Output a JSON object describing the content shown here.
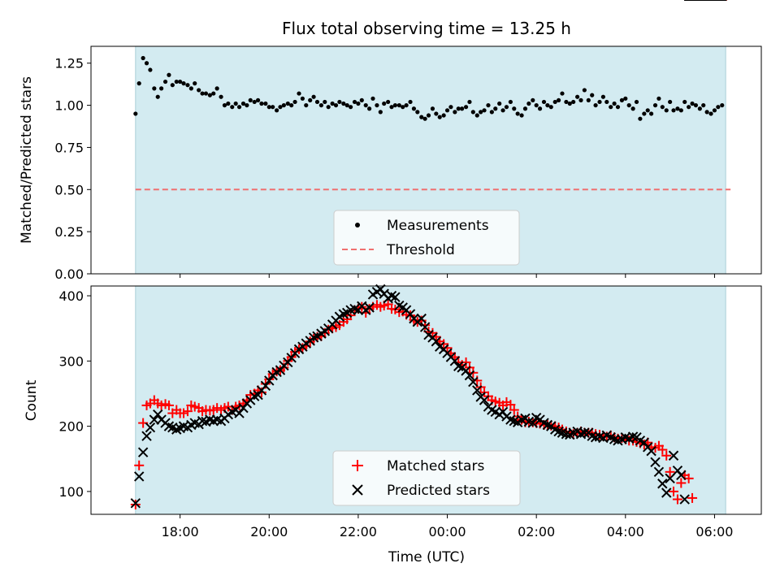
{
  "chart_data": [
    {
      "type": "scatter",
      "title": "Flux total observing time = 13.25 h",
      "ylabel": "Matched/Predicted stars",
      "xlabel": "",
      "ylim": [
        0,
        1.35
      ],
      "xlim_hours_since_1700_utc": [
        -1.0,
        14.05
      ],
      "observing_window_hours_since_1700_utc": [
        0.0,
        13.25
      ],
      "yticks": [
        0.0,
        0.25,
        0.5,
        0.75,
        1.0,
        1.25
      ],
      "ytick_labels": [
        "0.00",
        "0.25",
        "0.50",
        "0.75",
        "1.00",
        "1.25"
      ],
      "shaded_band_color": "#d3ebf1",
      "threshold": 0.5,
      "threshold_color": "#f07070",
      "series": [
        {
          "name": "Measurements",
          "x_hours_since_1700_utc": [
            0.0,
            0.08,
            0.17,
            0.25,
            0.33,
            0.42,
            0.5,
            0.58,
            0.67,
            0.75,
            0.83,
            0.92,
            1.0,
            1.08,
            1.17,
            1.25,
            1.33,
            1.42,
            1.5,
            1.58,
            1.67,
            1.75,
            1.83,
            1.92,
            2.0,
            2.08,
            2.17,
            2.25,
            2.33,
            2.42,
            2.5,
            2.58,
            2.67,
            2.75,
            2.83,
            2.92,
            3.0,
            3.08,
            3.17,
            3.25,
            3.33,
            3.42,
            3.5,
            3.58,
            3.67,
            3.75,
            3.83,
            3.92,
            4.0,
            4.08,
            4.17,
            4.25,
            4.33,
            4.42,
            4.5,
            4.58,
            4.67,
            4.75,
            4.83,
            4.92,
            5.0,
            5.08,
            5.17,
            5.25,
            5.33,
            5.42,
            5.5,
            5.58,
            5.67,
            5.75,
            5.83,
            5.92,
            6.0,
            6.08,
            6.17,
            6.25,
            6.33,
            6.42,
            6.5,
            6.58,
            6.67,
            6.75,
            6.83,
            6.92,
            7.0,
            7.08,
            7.17,
            7.25,
            7.33,
            7.42,
            7.5,
            7.58,
            7.67,
            7.75,
            7.83,
            7.92,
            8.0,
            8.08,
            8.17,
            8.25,
            8.33,
            8.42,
            8.5,
            8.58,
            8.67,
            8.75,
            8.83,
            8.92,
            9.0,
            9.08,
            9.17,
            9.25,
            9.33,
            9.42,
            9.5,
            9.58,
            9.67,
            9.75,
            9.83,
            9.92,
            10.0,
            10.08,
            10.17,
            10.25,
            10.33,
            10.42,
            10.5,
            10.58,
            10.67,
            10.75,
            10.83,
            10.92,
            11.0,
            11.08,
            11.17,
            11.25,
            11.33,
            11.42,
            11.5,
            11.58,
            11.67,
            11.75,
            11.83,
            11.92,
            12.0,
            12.08,
            12.17,
            12.25,
            12.33,
            12.42,
            12.5,
            12.58,
            12.67,
            12.75,
            12.83,
            12.92,
            13.0,
            13.08,
            13.17
          ],
          "y": [
            0.95,
            1.13,
            1.28,
            1.25,
            1.21,
            1.1,
            1.05,
            1.1,
            1.14,
            1.18,
            1.12,
            1.14,
            1.14,
            1.13,
            1.12,
            1.1,
            1.13,
            1.09,
            1.07,
            1.07,
            1.06,
            1.07,
            1.1,
            1.05,
            1.0,
            1.01,
            0.99,
            1.01,
            0.99,
            1.01,
            1.0,
            1.03,
            1.02,
            1.03,
            1.01,
            1.01,
            0.99,
            0.99,
            0.97,
            0.99,
            1.0,
            1.01,
            1.0,
            1.02,
            1.07,
            1.04,
            1.0,
            1.03,
            1.05,
            1.02,
            1.0,
            1.02,
            0.99,
            1.01,
            1.0,
            1.02,
            1.01,
            1.0,
            0.99,
            1.02,
            1.01,
            1.03,
            1.0,
            0.98,
            1.04,
            1.0,
            0.96,
            1.01,
            1.02,
            0.99,
            1.0,
            1.0,
            0.99,
            1.0,
            1.02,
            0.98,
            0.96,
            0.93,
            0.92,
            0.94,
            0.98,
            0.95,
            0.93,
            0.94,
            0.97,
            0.99,
            0.96,
            0.98,
            0.98,
            0.99,
            1.02,
            0.96,
            0.94,
            0.96,
            0.97,
            1.0,
            0.96,
            0.98,
            1.01,
            0.97,
            0.99,
            1.02,
            0.98,
            0.95,
            0.94,
            0.98,
            1.01,
            1.03,
            1.0,
            0.98,
            1.02,
            1.0,
            0.99,
            1.02,
            1.03,
            1.07,
            1.02,
            1.01,
            1.02,
            1.05,
            1.03,
            1.09,
            1.03,
            1.06,
            1.0,
            1.02,
            1.05,
            1.02,
            0.99,
            1.01,
            0.99,
            1.03,
            1.04,
            1.0,
            0.98,
            1.02,
            0.92,
            0.95,
            0.97,
            0.95,
            1.0,
            1.04,
            0.99,
            0.97,
            1.02,
            0.97,
            0.98,
            0.97,
            1.02,
            0.99,
            1.01,
            1.0,
            0.98,
            1.0,
            0.96,
            0.95,
            0.97,
            0.99,
            1.0,
            0.93,
            1.0,
            0.97,
            0.98,
            0.99
          ]
        }
      ],
      "legend": {
        "placement": "lower-center",
        "entries": [
          "Measurements",
          "Threshold"
        ]
      }
    },
    {
      "type": "scatter",
      "title": "",
      "ylabel": "Count",
      "xlabel": "Time (UTC)",
      "ylim": [
        65,
        415
      ],
      "yticks": [
        100,
        200,
        300,
        400
      ],
      "ytick_labels": [
        "100",
        "200",
        "300",
        "400"
      ],
      "xticks_hours_since_1700_utc": [
        1,
        3,
        5,
        7,
        9,
        11,
        13
      ],
      "xtick_labels": [
        "18:00",
        "20:00",
        "22:00",
        "00:00",
        "02:00",
        "04:00",
        "06:00"
      ],
      "shaded_band_color": "#d3ebf1",
      "series": [
        {
          "name": "Matched stars",
          "color": "#ff0000",
          "marker": "+",
          "x_hours_since_1700_utc": [
            0.0,
            0.08,
            0.17,
            0.25,
            0.33,
            0.42,
            0.5,
            0.58,
            0.67,
            0.75,
            0.83,
            0.92,
            1.0,
            1.08,
            1.17,
            1.25,
            1.33,
            1.42,
            1.5,
            1.58,
            1.67,
            1.75,
            1.83,
            1.92,
            2.0,
            2.08,
            2.17,
            2.25,
            2.33,
            2.42,
            2.5,
            2.58,
            2.67,
            2.75,
            2.83,
            2.92,
            3.0,
            3.08,
            3.17,
            3.25,
            3.33,
            3.42,
            3.5,
            3.58,
            3.67,
            3.75,
            3.83,
            3.92,
            4.0,
            4.08,
            4.17,
            4.25,
            4.33,
            4.42,
            4.5,
            4.58,
            4.67,
            4.75,
            4.83,
            4.92,
            5.0,
            5.08,
            5.17,
            5.25,
            5.33,
            5.42,
            5.5,
            5.58,
            5.67,
            5.75,
            5.83,
            5.92,
            6.0,
            6.08,
            6.17,
            6.25,
            6.33,
            6.42,
            6.5,
            6.58,
            6.67,
            6.75,
            6.83,
            6.92,
            7.0,
            7.08,
            7.17,
            7.25,
            7.33,
            7.42,
            7.5,
            7.58,
            7.67,
            7.75,
            7.83,
            7.92,
            8.0,
            8.08,
            8.17,
            8.25,
            8.33,
            8.42,
            8.5,
            8.58,
            8.67,
            8.75,
            8.83,
            8.92,
            9.0,
            9.08,
            9.17,
            9.25,
            9.33,
            9.42,
            9.5,
            9.58,
            9.67,
            9.75,
            9.83,
            9.92,
            10.0,
            10.08,
            10.17,
            10.25,
            10.33,
            10.42,
            10.5,
            10.58,
            10.67,
            10.75,
            10.83,
            10.92,
            11.0,
            11.08,
            11.17,
            11.25,
            11.33,
            11.42,
            11.5,
            11.58,
            11.67,
            11.75,
            11.83,
            11.92,
            12.0,
            12.08,
            12.17,
            12.25,
            12.33,
            12.42,
            12.5,
            12.58,
            12.67,
            12.75,
            12.83,
            12.92,
            13.0,
            13.08,
            13.17
          ],
          "values": [
            80,
            140,
            205,
            232,
            235,
            240,
            235,
            232,
            234,
            232,
            220,
            225,
            220,
            220,
            223,
            232,
            230,
            228,
            223,
            225,
            224,
            225,
            228,
            225,
            228,
            230,
            225,
            230,
            232,
            235,
            240,
            248,
            250,
            255,
            252,
            265,
            272,
            280,
            284,
            286,
            290,
            300,
            306,
            314,
            318,
            320,
            323,
            330,
            334,
            337,
            338,
            343,
            348,
            350,
            352,
            355,
            360,
            364,
            370,
            378,
            380,
            383,
            374,
            380,
            383,
            386,
            383,
            385,
            387,
            380,
            379,
            375,
            376,
            371,
            370,
            363,
            360,
            362,
            355,
            345,
            343,
            337,
            330,
            326,
            320,
            312,
            306,
            298,
            294,
            298,
            290,
            282,
            270,
            260,
            252,
            246,
            240,
            238,
            236,
            232,
            237,
            233,
            225,
            215,
            210,
            206,
            207,
            206,
            205,
            204,
            202,
            202,
            201,
            200,
            198,
            195,
            192,
            190,
            188,
            190,
            192,
            190,
            190,
            190,
            188,
            187,
            185,
            184,
            186,
            183,
            181,
            182,
            180,
            178,
            178,
            176,
            174,
            172,
            175,
            168,
            167,
            170,
            164,
            155,
            130,
            100,
            88,
            113,
            125,
            120,
            90
          ]
        },
        {
          "name": "Predicted stars",
          "color": "#000000",
          "marker": "x",
          "x_hours_since_1700_utc": [
            0.0,
            0.08,
            0.17,
            0.25,
            0.33,
            0.42,
            0.5,
            0.58,
            0.67,
            0.75,
            0.83,
            0.92,
            1.0,
            1.08,
            1.17,
            1.25,
            1.33,
            1.42,
            1.5,
            1.58,
            1.67,
            1.75,
            1.83,
            1.92,
            2.0,
            2.08,
            2.17,
            2.25,
            2.33,
            2.42,
            2.5,
            2.58,
            2.67,
            2.75,
            2.83,
            2.92,
            3.0,
            3.08,
            3.17,
            3.25,
            3.33,
            3.42,
            3.5,
            3.58,
            3.67,
            3.75,
            3.83,
            3.92,
            4.0,
            4.08,
            4.17,
            4.25,
            4.33,
            4.42,
            4.5,
            4.58,
            4.67,
            4.75,
            4.83,
            4.92,
            5.0,
            5.08,
            5.17,
            5.25,
            5.33,
            5.42,
            5.5,
            5.58,
            5.67,
            5.75,
            5.83,
            5.92,
            6.0,
            6.08,
            6.17,
            6.25,
            6.33,
            6.42,
            6.5,
            6.58,
            6.67,
            6.75,
            6.83,
            6.92,
            7.0,
            7.08,
            7.17,
            7.25,
            7.33,
            7.42,
            7.5,
            7.58,
            7.67,
            7.75,
            7.83,
            7.92,
            8.0,
            8.08,
            8.17,
            8.25,
            8.33,
            8.42,
            8.5,
            8.58,
            8.67,
            8.75,
            8.83,
            8.92,
            9.0,
            9.08,
            9.17,
            9.25,
            9.33,
            9.42,
            9.5,
            9.58,
            9.67,
            9.75,
            9.83,
            9.92,
            10.0,
            10.08,
            10.17,
            10.25,
            10.33,
            10.42,
            10.5,
            10.58,
            10.67,
            10.75,
            10.83,
            10.92,
            11.0,
            11.08,
            11.17,
            11.25,
            11.33,
            11.42,
            11.5,
            11.58,
            11.67,
            11.75,
            11.83,
            11.92,
            12.0,
            12.08,
            12.17,
            12.25,
            12.33,
            12.42,
            12.5,
            12.58,
            12.67,
            12.75,
            12.83,
            12.92,
            13.0,
            13.08,
            13.17
          ],
          "values": [
            82,
            123,
            160,
            185,
            198,
            210,
            218,
            210,
            205,
            200,
            198,
            195,
            197,
            200,
            198,
            202,
            205,
            203,
            208,
            207,
            210,
            208,
            210,
            208,
            212,
            218,
            222,
            225,
            220,
            228,
            235,
            240,
            246,
            248,
            255,
            262,
            270,
            278,
            283,
            286,
            293,
            298,
            305,
            312,
            318,
            322,
            327,
            331,
            336,
            338,
            342,
            346,
            350,
            356,
            362,
            368,
            372,
            374,
            378,
            380,
            378,
            384,
            378,
            382,
            402,
            406,
            410,
            403,
            396,
            400,
            398,
            385,
            382,
            378,
            372,
            365,
            360,
            365,
            352,
            340,
            336,
            330,
            322,
            318,
            312,
            306,
            300,
            292,
            290,
            285,
            278,
            268,
            255,
            245,
            240,
            230,
            225,
            222,
            218,
            222,
            215,
            210,
            208,
            206,
            210,
            212,
            207,
            205,
            213,
            210,
            205,
            202,
            200,
            195,
            192,
            190,
            188,
            187,
            190,
            192,
            188,
            190,
            190,
            185,
            183,
            184,
            182,
            186,
            183,
            180,
            178,
            180,
            183,
            181,
            184,
            183,
            178,
            175,
            168,
            162,
            145,
            130,
            112,
            98,
            120,
            155,
            132,
            125,
            88
          ]
        }
      ],
      "legend": {
        "placement": "lower-center",
        "entries": [
          "Matched stars",
          "Predicted stars"
        ]
      }
    }
  ]
}
